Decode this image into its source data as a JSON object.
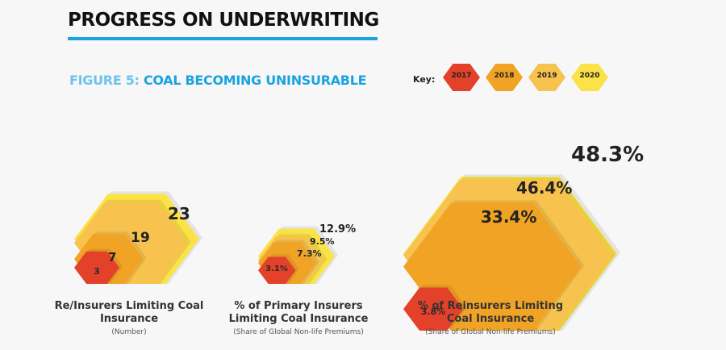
{
  "header": {
    "title": "PROGRESS ON UNDERWRITING"
  },
  "figure": {
    "lead": "FIGURE 5:",
    "title": "COAL BECOMING UNINSURABLE"
  },
  "key": {
    "label": "Key:",
    "years": [
      "2017",
      "2018",
      "2019",
      "2020"
    ],
    "colors": [
      "#e3412a",
      "#f0a324",
      "#f7c24e",
      "#fbe246"
    ]
  },
  "chart_data": [
    {
      "type": "area-hexagon",
      "title": "Re/Insurers Limiting Coal Insurance",
      "subtitle": "(Number)",
      "categories": [
        "2017",
        "2018",
        "2019",
        "2020"
      ],
      "values": [
        3,
        7,
        19,
        23
      ],
      "labels": [
        "3",
        "7",
        "19",
        "23"
      ]
    },
    {
      "type": "area-hexagon",
      "title": "% of Primary Insurers Limiting Coal Insurance",
      "subtitle": "(Share of Global Non-life Premiums)",
      "categories": [
        "2017",
        "2018",
        "2019",
        "2020"
      ],
      "values": [
        3.1,
        7.3,
        9.5,
        12.9
      ],
      "labels": [
        "3.1%",
        "7.3%",
        "9.5%",
        "12.9%"
      ]
    },
    {
      "type": "area-hexagon",
      "title": "% of Reinsurers Limiting Coal Insurance",
      "subtitle": "(Share of Global Non-life Premiums)",
      "categories": [
        "2017",
        "2018",
        "2019",
        "2020"
      ],
      "values": [
        3.8,
        33.4,
        46.4,
        48.3
      ],
      "labels": [
        "3.8%",
        "33.4%",
        "46.4%",
        "48.3%"
      ]
    }
  ]
}
